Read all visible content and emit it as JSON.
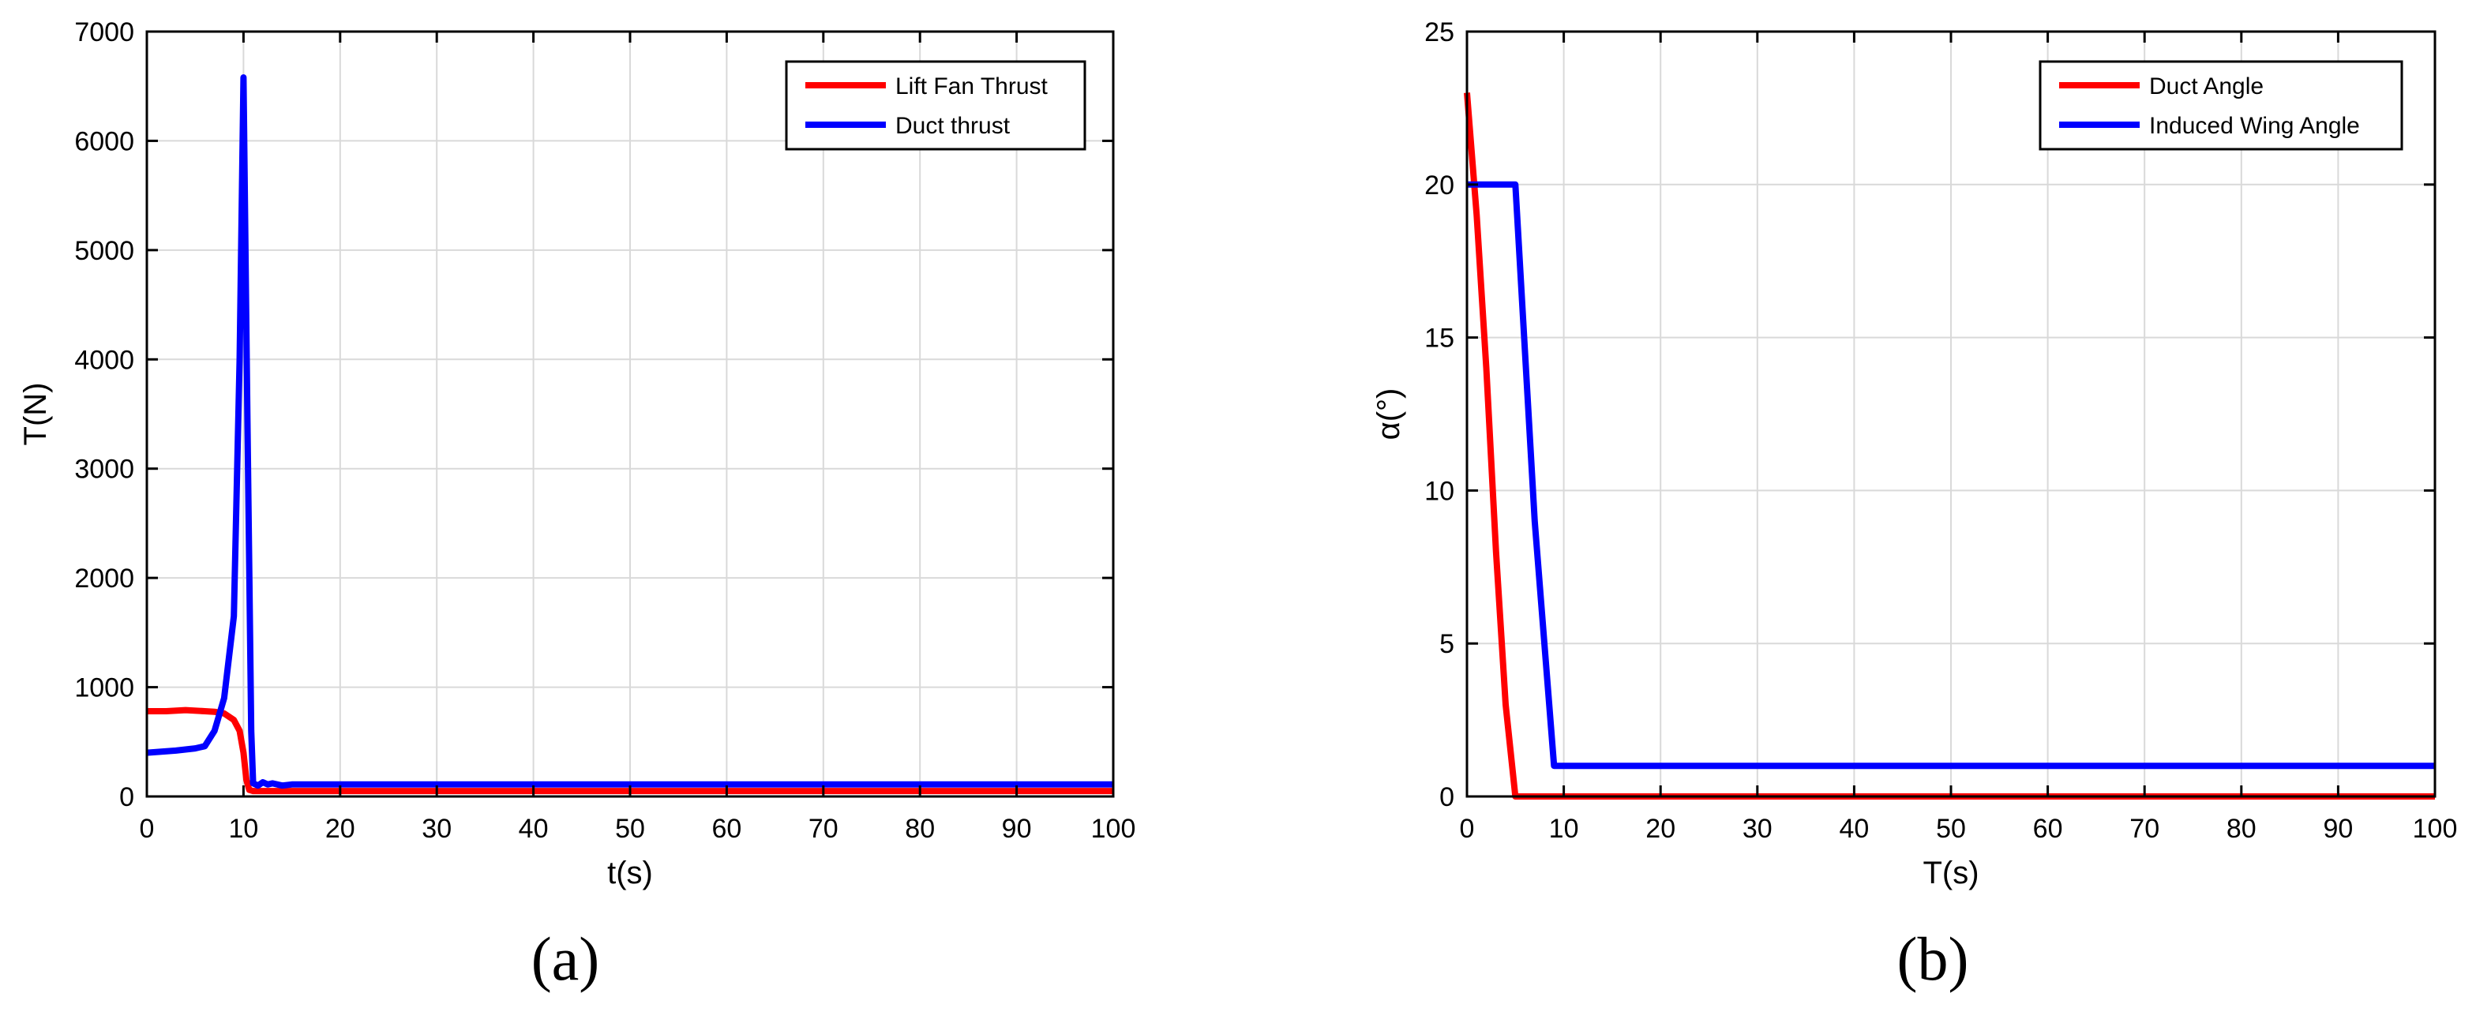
{
  "chart_data": [
    {
      "type": "line",
      "panel": "(a)",
      "xlabel": "t(s)",
      "ylabel": "T(N)",
      "xlim": [
        0,
        100
      ],
      "ylim": [
        0,
        7000
      ],
      "xticks": [
        0,
        10,
        20,
        30,
        40,
        50,
        60,
        70,
        80,
        90,
        100
      ],
      "yticks": [
        0,
        1000,
        2000,
        3000,
        4000,
        5000,
        6000,
        7000
      ],
      "grid": true,
      "legend_position": "top-right",
      "series": [
        {
          "name": "Lift Fan Thrust",
          "color": "#ff0000",
          "points": [
            [
              0,
              780
            ],
            [
              2,
              780
            ],
            [
              4,
              790
            ],
            [
              6,
              780
            ],
            [
              7,
              775
            ],
            [
              8,
              760
            ],
            [
              9,
              700
            ],
            [
              9.6,
              600
            ],
            [
              10,
              400
            ],
            [
              10.3,
              150
            ],
            [
              10.6,
              60
            ],
            [
              11,
              50
            ],
            [
              12,
              50
            ],
            [
              14,
              50
            ],
            [
              100,
              50
            ]
          ]
        },
        {
          "name": "Duct thrust",
          "color": "#0000ff",
          "points": [
            [
              0,
              400
            ],
            [
              3,
              420
            ],
            [
              5,
              440
            ],
            [
              6,
              460
            ],
            [
              7,
              600
            ],
            [
              8,
              900
            ],
            [
              9,
              1650
            ],
            [
              9.6,
              4000
            ],
            [
              10,
              6580
            ],
            [
              10.4,
              3500
            ],
            [
              10.8,
              600
            ],
            [
              11,
              120
            ],
            [
              11.5,
              100
            ],
            [
              12,
              130
            ],
            [
              12.5,
              110
            ],
            [
              13,
              120
            ],
            [
              14,
              100
            ],
            [
              15,
              110
            ],
            [
              100,
              110
            ]
          ]
        }
      ]
    },
    {
      "type": "line",
      "panel": "(b)",
      "xlabel": "T(s)",
      "ylabel": "α(°)",
      "xlim": [
        0,
        100
      ],
      "ylim": [
        0,
        25
      ],
      "xticks": [
        0,
        10,
        20,
        30,
        40,
        50,
        60,
        70,
        80,
        90,
        100
      ],
      "yticks": [
        0,
        5,
        10,
        15,
        20,
        25
      ],
      "grid": true,
      "legend_position": "top-right",
      "series": [
        {
          "name": "Duct Angle",
          "color": "#ff0000",
          "points": [
            [
              0,
              23
            ],
            [
              1,
              19
            ],
            [
              2,
              14
            ],
            [
              3,
              8
            ],
            [
              4,
              3
            ],
            [
              5,
              0
            ],
            [
              100,
              0
            ]
          ]
        },
        {
          "name": "Induced Wing Angle",
          "color": "#0000ff",
          "points": [
            [
              0,
              20
            ],
            [
              5,
              20
            ],
            [
              7,
              9
            ],
            [
              9,
              1
            ],
            [
              100,
              1
            ]
          ]
        }
      ]
    }
  ],
  "panel_labels": {
    "a": "(a)",
    "b": "(b)"
  }
}
